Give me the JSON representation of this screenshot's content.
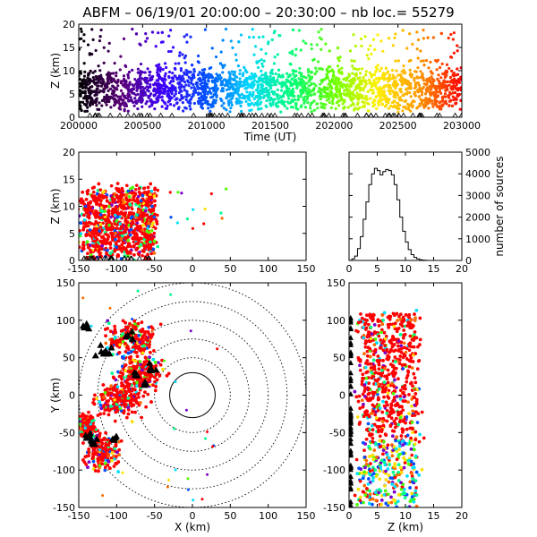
{
  "title": "ABFM – 06/19/01 20:00:00 – 20:30:00 – nb loc.=  55279",
  "chart_data": [
    {
      "type": "scatter",
      "panel": "time-height",
      "xlabel": "Time (UT)",
      "ylabel": "Z (km)",
      "xlim": [
        200000,
        203000
      ],
      "ylim": [
        0,
        20
      ],
      "xticks": [
        "200000",
        "200500",
        "201000",
        "201500",
        "202000",
        "202500",
        "203000"
      ],
      "yticks": [
        "0",
        "5",
        "10",
        "15",
        "20"
      ],
      "color_by": "time",
      "color_scale": [
        "#000000",
        "#5a0078",
        "#3c00ff",
        "#0050ff",
        "#00d8ff",
        "#00ff78",
        "#6eff00",
        "#fff000",
        "#ff9600",
        "#ff0000"
      ]
    },
    {
      "type": "scatter",
      "panel": "x-height",
      "xlabel": "",
      "ylabel": "Z (km)",
      "xlim": [
        -150,
        150
      ],
      "ylim": [
        0,
        20
      ],
      "xticks": [
        "-150",
        "-100",
        "-50",
        "0",
        "50",
        "100",
        "150"
      ],
      "yticks": [
        "0",
        "5",
        "10",
        "15",
        "20"
      ]
    },
    {
      "type": "line",
      "panel": "height-histogram",
      "xlabel": "",
      "ylabel": "number of sources",
      "xlim": [
        0,
        20
      ],
      "ylim": [
        0,
        5000
      ],
      "xticks": [
        "0",
        "5",
        "10",
        "15",
        "20"
      ],
      "yticks": [
        "0",
        "1000",
        "2000",
        "3000",
        "4000",
        "5000"
      ],
      "x": [
        0,
        0.5,
        1,
        1.5,
        2,
        2.5,
        3,
        3.5,
        4,
        4.5,
        5,
        5.5,
        6,
        6.5,
        7,
        7.5,
        8,
        8.5,
        9,
        9.5,
        10,
        10.5,
        11,
        11.5,
        12,
        12.5,
        13,
        13.5,
        14,
        14.5,
        15,
        16,
        17,
        18,
        19,
        20
      ],
      "values": [
        0,
        80,
        200,
        550,
        1100,
        1900,
        2700,
        3500,
        4000,
        4250,
        4150,
        3950,
        4100,
        4200,
        4150,
        3950,
        3500,
        2800,
        2000,
        1350,
        850,
        500,
        270,
        140,
        70,
        30,
        15,
        5,
        0,
        0,
        0,
        0,
        0,
        0,
        0,
        0
      ]
    },
    {
      "type": "scatter",
      "panel": "plan-view",
      "xlabel": "X (km)",
      "ylabel": "Y (km)",
      "xlim": [
        -150,
        150
      ],
      "ylim": [
        -150,
        150
      ],
      "xticks": [
        "-150",
        "-100",
        "-50",
        "0",
        "50",
        "100",
        "150"
      ],
      "yticks": [
        "-150",
        "-100",
        "-50",
        "0",
        "50",
        "100",
        "150"
      ],
      "range_rings_km": [
        30,
        50,
        75,
        100,
        125,
        150
      ]
    },
    {
      "type": "scatter",
      "panel": "height-y",
      "xlabel": "Z (km)",
      "ylabel": "",
      "xlim": [
        0,
        20
      ],
      "ylim": [
        -150,
        150
      ],
      "xticks": [
        "0",
        "5",
        "10",
        "15",
        "20"
      ],
      "yticks": [
        "-150",
        "-100",
        "-50",
        "0",
        "50",
        "100",
        "150"
      ]
    }
  ]
}
